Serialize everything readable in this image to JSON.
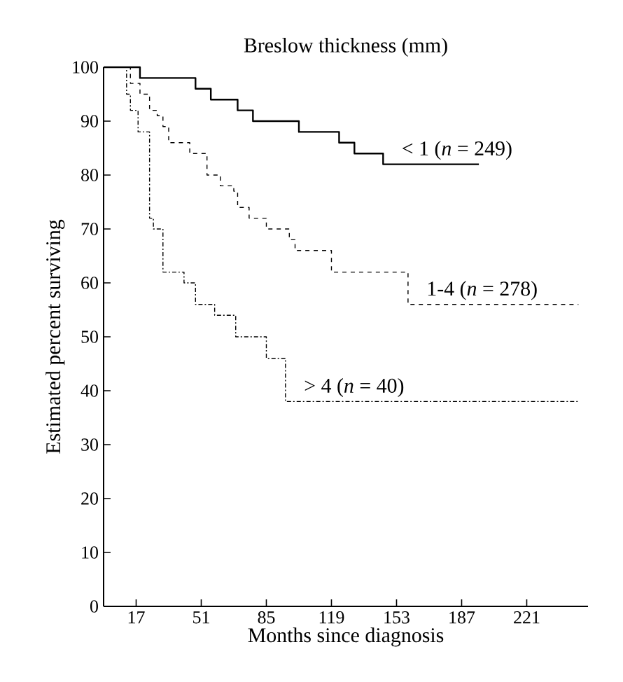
{
  "chart_data": {
    "type": "step",
    "title": "Breslow thickness (mm)",
    "xlabel": "Months since diagnosis",
    "ylabel": "Estimated percent surviving",
    "xlim": [
      0,
      253
    ],
    "xticks": [
      17,
      51,
      85,
      119,
      153,
      187,
      221
    ],
    "ylim": [
      0,
      100
    ],
    "yticks": [
      0,
      10,
      20,
      30,
      40,
      50,
      60,
      70,
      80,
      90,
      100
    ],
    "grid": false,
    "series": [
      {
        "name": "< 1 (*n* = 249)",
        "color": "#000000",
        "line_style": "solid",
        "x": [
          0,
          19,
          48,
          56,
          70,
          78,
          102,
          123,
          131,
          146,
          196
        ],
        "values": [
          100,
          98,
          96,
          94,
          92,
          90,
          88,
          86,
          84,
          82,
          82
        ]
      },
      {
        "name": "1-4 (*n* = 278)",
        "color": "#000000",
        "line_style": "dashed",
        "x": [
          0,
          14,
          19,
          24,
          28,
          31,
          34,
          45,
          54,
          61,
          68,
          70,
          76,
          85,
          97,
          100,
          119,
          159,
          248
        ],
        "values": [
          100,
          97,
          95,
          92,
          91,
          89,
          86,
          84,
          80,
          78,
          77,
          74,
          72,
          70,
          68,
          66,
          62,
          56,
          56
        ]
      },
      {
        "name": "> 4 (*n* = 40)",
        "color": "#000000",
        "line_style": "dashdot",
        "x": [
          0,
          12,
          14,
          18,
          24,
          26,
          31,
          42,
          48,
          58,
          69,
          85,
          95,
          248
        ],
        "values": [
          100,
          95,
          92,
          88,
          72,
          70,
          62,
          60,
          56,
          54,
          50,
          46,
          38,
          38
        ]
      }
    ]
  }
}
